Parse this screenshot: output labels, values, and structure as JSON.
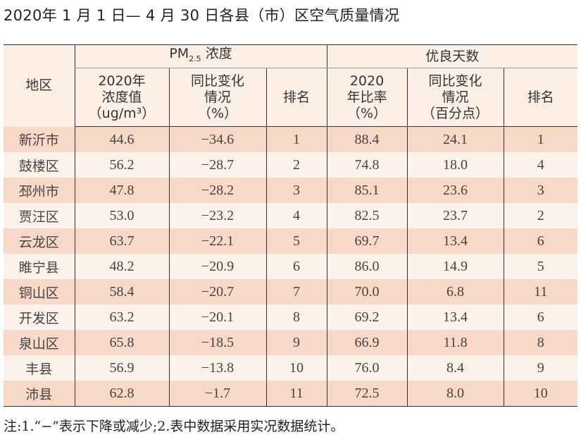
{
  "title": "2020年 1 月 1 日— 4 月 30 日各县（市）区空气质量情况",
  "header": {
    "region": "地区",
    "pm_group": "PM",
    "pm_sub": "2.5",
    "pm_suffix": " 浓度",
    "good_group": "优良天数",
    "cols": [
      [
        "2020年",
        "浓度值",
        "（ug/m³）"
      ],
      [
        "同比变化",
        "情况",
        "（%）"
      ],
      [
        "排名"
      ],
      [
        "2020",
        "年比率",
        "（%）"
      ],
      [
        "同比变化",
        "情况",
        "（百分点）"
      ],
      [
        "排名"
      ]
    ]
  },
  "rows": [
    [
      "新沂市",
      "44.6",
      "−34.6",
      "1",
      "88.4",
      "24.1",
      "1"
    ],
    [
      "鼓楼区",
      "56.2",
      "−28.7",
      "2",
      "74.8",
      "18.0",
      "4"
    ],
    [
      "邳州市",
      "47.8",
      "−28.2",
      "3",
      "85.1",
      "23.6",
      "3"
    ],
    [
      "贾汪区",
      "53.0",
      "−23.2",
      "4",
      "82.5",
      "23.7",
      "2"
    ],
    [
      "云龙区",
      "63.7",
      "−22.1",
      "5",
      "69.7",
      "13.4",
      "6"
    ],
    [
      "睢宁县",
      "48.2",
      "−20.9",
      "6",
      "86.0",
      "14.9",
      "5"
    ],
    [
      "铜山区",
      "58.4",
      "−20.7",
      "7",
      "70.0",
      "6.8",
      "11"
    ],
    [
      "开发区",
      "63.2",
      "−20.1",
      "8",
      "69.2",
      "13.4",
      "6"
    ],
    [
      "泉山区",
      "65.8",
      "−18.5",
      "9",
      "66.9",
      "11.8",
      "8"
    ],
    [
      "丰县",
      "56.9",
      "−13.8",
      "10",
      "76.0",
      "8.4",
      "9"
    ],
    [
      "沛县",
      "62.8",
      "−1.7",
      "11",
      "72.5",
      "8.0",
      "10"
    ]
  ],
  "note": "注:1.“−”表示下降或减少;2.表中数据采用实况数据统计。",
  "colors": {
    "row_odd": "#f8d8c6",
    "row_even": "#fdf2eb",
    "header_bg": "#fcefe6"
  }
}
